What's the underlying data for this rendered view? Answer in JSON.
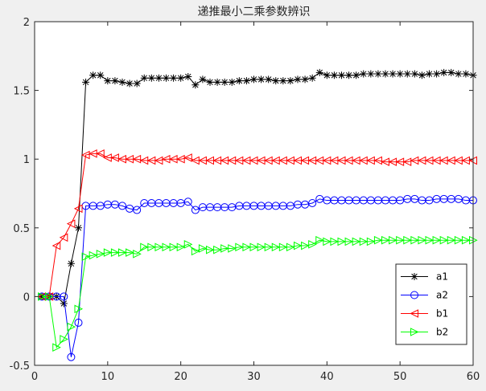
{
  "chart_data": {
    "type": "line",
    "title": "递推最小二乘参数辨识",
    "xlabel": "",
    "ylabel": "",
    "xlim": [
      0,
      60
    ],
    "ylim": [
      -0.5,
      2
    ],
    "xticks": [
      0,
      10,
      20,
      30,
      40,
      50,
      60
    ],
    "yticks": [
      -0.5,
      0,
      0.5,
      1,
      1.5,
      2
    ],
    "xtick_labels": [
      "0",
      "10",
      "20",
      "30",
      "40",
      "50",
      "60"
    ],
    "ytick_labels": [
      "-0.5",
      "0",
      "0.5",
      "1",
      "1.5",
      "2"
    ],
    "grid": false,
    "legend_position": "bottom-right",
    "x": [
      1,
      2,
      3,
      4,
      5,
      6,
      7,
      8,
      9,
      10,
      11,
      12,
      13,
      14,
      15,
      16,
      17,
      18,
      19,
      20,
      21,
      22,
      23,
      24,
      25,
      26,
      27,
      28,
      29,
      30,
      31,
      32,
      33,
      34,
      35,
      36,
      37,
      38,
      39,
      40,
      41,
      42,
      43,
      44,
      45,
      46,
      47,
      48,
      49,
      50,
      51,
      52,
      53,
      54,
      55,
      56,
      57,
      58,
      59,
      60
    ],
    "series": [
      {
        "name": "a1",
        "color": "#000000",
        "marker": "asterisk",
        "values": [
          0,
          0,
          0,
          -0.05,
          0.24,
          0.5,
          1.56,
          1.61,
          1.61,
          1.57,
          1.57,
          1.56,
          1.55,
          1.55,
          1.59,
          1.59,
          1.59,
          1.59,
          1.59,
          1.59,
          1.6,
          1.54,
          1.58,
          1.56,
          1.56,
          1.56,
          1.56,
          1.57,
          1.57,
          1.58,
          1.58,
          1.58,
          1.57,
          1.57,
          1.57,
          1.58,
          1.58,
          1.59,
          1.63,
          1.61,
          1.61,
          1.61,
          1.61,
          1.61,
          1.62,
          1.62,
          1.62,
          1.62,
          1.62,
          1.62,
          1.62,
          1.62,
          1.61,
          1.62,
          1.62,
          1.63,
          1.63,
          1.62,
          1.62,
          1.61
        ]
      },
      {
        "name": "a2",
        "color": "#0000ff",
        "marker": "circle",
        "values": [
          0,
          0,
          0,
          0,
          -0.44,
          -0.19,
          0.66,
          0.66,
          0.66,
          0.67,
          0.67,
          0.66,
          0.64,
          0.63,
          0.68,
          0.68,
          0.68,
          0.68,
          0.68,
          0.68,
          0.69,
          0.63,
          0.65,
          0.65,
          0.65,
          0.65,
          0.65,
          0.66,
          0.66,
          0.66,
          0.66,
          0.66,
          0.66,
          0.66,
          0.66,
          0.67,
          0.67,
          0.68,
          0.71,
          0.7,
          0.7,
          0.7,
          0.7,
          0.7,
          0.7,
          0.7,
          0.7,
          0.7,
          0.7,
          0.7,
          0.71,
          0.71,
          0.7,
          0.7,
          0.71,
          0.71,
          0.71,
          0.71,
          0.7,
          0.7
        ]
      },
      {
        "name": "b1",
        "color": "#ff0000",
        "marker": "triangle-left",
        "values": [
          0,
          0,
          0.37,
          0.43,
          0.53,
          0.64,
          1.03,
          1.04,
          1.04,
          1.01,
          1.01,
          1.0,
          1.0,
          1.0,
          0.99,
          0.99,
          0.99,
          1.0,
          1.0,
          1.0,
          1.01,
          0.99,
          0.99,
          0.99,
          0.99,
          0.99,
          0.99,
          0.99,
          0.99,
          0.99,
          0.99,
          0.99,
          0.99,
          0.99,
          0.99,
          0.99,
          0.99,
          0.99,
          0.99,
          0.99,
          0.99,
          0.99,
          0.99,
          0.99,
          0.99,
          0.99,
          0.99,
          0.98,
          0.98,
          0.98,
          0.98,
          0.99,
          0.99,
          0.99,
          0.99,
          0.99,
          0.99,
          0.99,
          0.99,
          0.99
        ]
      },
      {
        "name": "b2",
        "color": "#00ff00",
        "marker": "triangle-right",
        "values": [
          0,
          0,
          -0.37,
          -0.31,
          -0.22,
          -0.09,
          0.29,
          0.3,
          0.31,
          0.32,
          0.32,
          0.32,
          0.32,
          0.31,
          0.36,
          0.36,
          0.36,
          0.36,
          0.36,
          0.36,
          0.38,
          0.33,
          0.35,
          0.34,
          0.34,
          0.35,
          0.35,
          0.36,
          0.36,
          0.36,
          0.36,
          0.36,
          0.36,
          0.36,
          0.36,
          0.37,
          0.37,
          0.38,
          0.41,
          0.4,
          0.4,
          0.4,
          0.4,
          0.4,
          0.4,
          0.4,
          0.41,
          0.41,
          0.41,
          0.41,
          0.41,
          0.41,
          0.41,
          0.41,
          0.41,
          0.41,
          0.41,
          0.41,
          0.41,
          0.41
        ]
      }
    ]
  }
}
